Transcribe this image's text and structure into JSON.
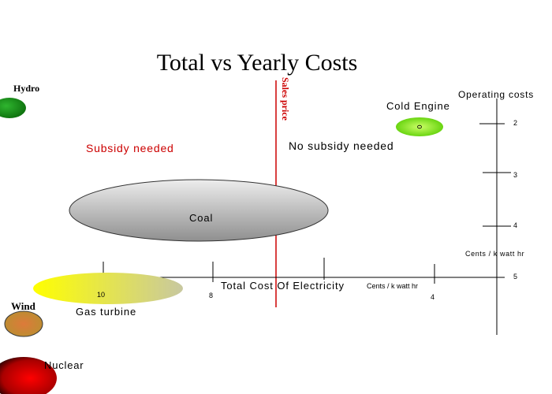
{
  "title": "Total vs Yearly Costs",
  "sales_price_label": "Sales price",
  "subsidy_needed": "Subsidy needed",
  "no_subsidy_needed": "No subsidy needed",
  "operating_costs_label": "Operating costs",
  "right_axis_unit": "Cents / k watt hr",
  "right_axis_ticks": [
    "2",
    "3",
    "4",
    "5"
  ],
  "bottom_axis_label": "Total Cost Of Electricity",
  "bottom_axis_unit": "Cents / k watt hr",
  "bottom_axis_ticks": [
    "10",
    "8",
    "4"
  ],
  "technologies": {
    "hydro": "Hydro",
    "cold_engine": "Cold Engine",
    "coal": "Coal",
    "gas_turbine": "Gas turbine",
    "wind": "Wind",
    "nuclear": "Nuclear"
  },
  "colors": {
    "sales_line": "#cc0000",
    "subsidy_text": "#cc0000",
    "hydro": "#1a8a1a",
    "cold_engine": "#66dd00",
    "coal": "#c8c8c8",
    "gas_turbine": "#e8e830",
    "wind": "#c89030",
    "nuclear": "#cc0000"
  }
}
